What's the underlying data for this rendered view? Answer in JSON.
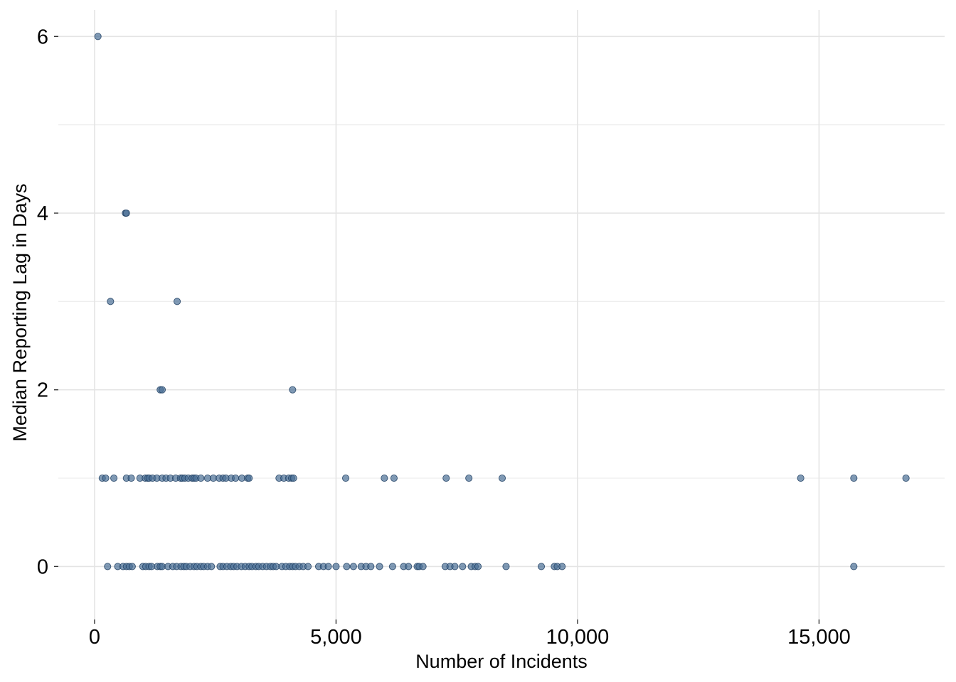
{
  "chart_data": {
    "type": "scatter",
    "title": "",
    "xlabel": "Number of Incidents",
    "ylabel": "Median Reporting Lag in Days",
    "xlim": [
      -750,
      17600
    ],
    "ylim": [
      -0.6,
      6.3
    ],
    "x_ticks": [
      0,
      5000,
      10000,
      15000
    ],
    "x_tick_labels": [
      "0",
      "5,000",
      "10,000",
      "15,000"
    ],
    "y_ticks": [
      0,
      2,
      4,
      6
    ],
    "y_tick_labels": [
      "0",
      "2",
      "4",
      "6"
    ],
    "x_minor_gridlines": [],
    "y_minor_gridlines": [
      1,
      3,
      5
    ],
    "grid": true,
    "legend": "none",
    "point_color": "#4a6f96",
    "point_edge_color": "#1f3e62",
    "point_opacity": 0.7,
    "series": [
      {
        "points": [
          [
            70,
            6
          ],
          [
            640,
            4
          ],
          [
            660,
            4
          ],
          [
            330,
            3
          ],
          [
            1710,
            3
          ],
          [
            1360,
            2
          ],
          [
            1400,
            2
          ],
          [
            4100,
            2
          ],
          [
            160,
            1
          ],
          [
            230,
            1
          ],
          [
            400,
            1
          ],
          [
            660,
            1
          ],
          [
            760,
            1
          ],
          [
            940,
            1
          ],
          [
            1050,
            1
          ],
          [
            1100,
            1
          ],
          [
            1130,
            1
          ],
          [
            1200,
            1
          ],
          [
            1290,
            1
          ],
          [
            1400,
            1
          ],
          [
            1480,
            1
          ],
          [
            1570,
            1
          ],
          [
            1680,
            1
          ],
          [
            1780,
            1
          ],
          [
            1820,
            1
          ],
          [
            1870,
            1
          ],
          [
            1940,
            1
          ],
          [
            2020,
            1
          ],
          [
            2060,
            1
          ],
          [
            2100,
            1
          ],
          [
            2200,
            1
          ],
          [
            2340,
            1
          ],
          [
            2460,
            1
          ],
          [
            2580,
            1
          ],
          [
            2660,
            1
          ],
          [
            2720,
            1
          ],
          [
            2830,
            1
          ],
          [
            2920,
            1
          ],
          [
            3050,
            1
          ],
          [
            3170,
            1
          ],
          [
            3200,
            1
          ],
          [
            3820,
            1
          ],
          [
            3920,
            1
          ],
          [
            4020,
            1
          ],
          [
            4080,
            1
          ],
          [
            4120,
            1
          ],
          [
            5200,
            1
          ],
          [
            6000,
            1
          ],
          [
            6200,
            1
          ],
          [
            7280,
            1
          ],
          [
            7750,
            1
          ],
          [
            8440,
            1
          ],
          [
            14620,
            1
          ],
          [
            15720,
            1
          ],
          [
            16800,
            1
          ],
          [
            270,
            0
          ],
          [
            480,
            0
          ],
          [
            590,
            0
          ],
          [
            660,
            0
          ],
          [
            720,
            0
          ],
          [
            780,
            0
          ],
          [
            1000,
            0
          ],
          [
            1060,
            0
          ],
          [
            1130,
            0
          ],
          [
            1180,
            0
          ],
          [
            1300,
            0
          ],
          [
            1360,
            0
          ],
          [
            1400,
            0
          ],
          [
            1520,
            0
          ],
          [
            1620,
            0
          ],
          [
            1700,
            0
          ],
          [
            1790,
            0
          ],
          [
            1850,
            0
          ],
          [
            1900,
            0
          ],
          [
            1980,
            0
          ],
          [
            2060,
            0
          ],
          [
            2120,
            0
          ],
          [
            2200,
            0
          ],
          [
            2260,
            0
          ],
          [
            2340,
            0
          ],
          [
            2420,
            0
          ],
          [
            2600,
            0
          ],
          [
            2660,
            0
          ],
          [
            2740,
            0
          ],
          [
            2820,
            0
          ],
          [
            2880,
            0
          ],
          [
            2950,
            0
          ],
          [
            3040,
            0
          ],
          [
            3120,
            0
          ],
          [
            3200,
            0
          ],
          [
            3260,
            0
          ],
          [
            3340,
            0
          ],
          [
            3400,
            0
          ],
          [
            3480,
            0
          ],
          [
            3560,
            0
          ],
          [
            3640,
            0
          ],
          [
            3700,
            0
          ],
          [
            3760,
            0
          ],
          [
            3880,
            0
          ],
          [
            3960,
            0
          ],
          [
            4040,
            0
          ],
          [
            4100,
            0
          ],
          [
            4160,
            0
          ],
          [
            4240,
            0
          ],
          [
            4320,
            0
          ],
          [
            4420,
            0
          ],
          [
            4640,
            0
          ],
          [
            4740,
            0
          ],
          [
            4840,
            0
          ],
          [
            5000,
            0
          ],
          [
            5220,
            0
          ],
          [
            5360,
            0
          ],
          [
            5520,
            0
          ],
          [
            5620,
            0
          ],
          [
            5720,
            0
          ],
          [
            5900,
            0
          ],
          [
            6170,
            0
          ],
          [
            6400,
            0
          ],
          [
            6500,
            0
          ],
          [
            6680,
            0
          ],
          [
            6720,
            0
          ],
          [
            6800,
            0
          ],
          [
            7260,
            0
          ],
          [
            7360,
            0
          ],
          [
            7460,
            0
          ],
          [
            7620,
            0
          ],
          [
            7800,
            0
          ],
          [
            7880,
            0
          ],
          [
            7940,
            0
          ],
          [
            8520,
            0
          ],
          [
            9250,
            0
          ],
          [
            9520,
            0
          ],
          [
            9580,
            0
          ],
          [
            9680,
            0
          ],
          [
            15720,
            0
          ]
        ]
      }
    ]
  }
}
